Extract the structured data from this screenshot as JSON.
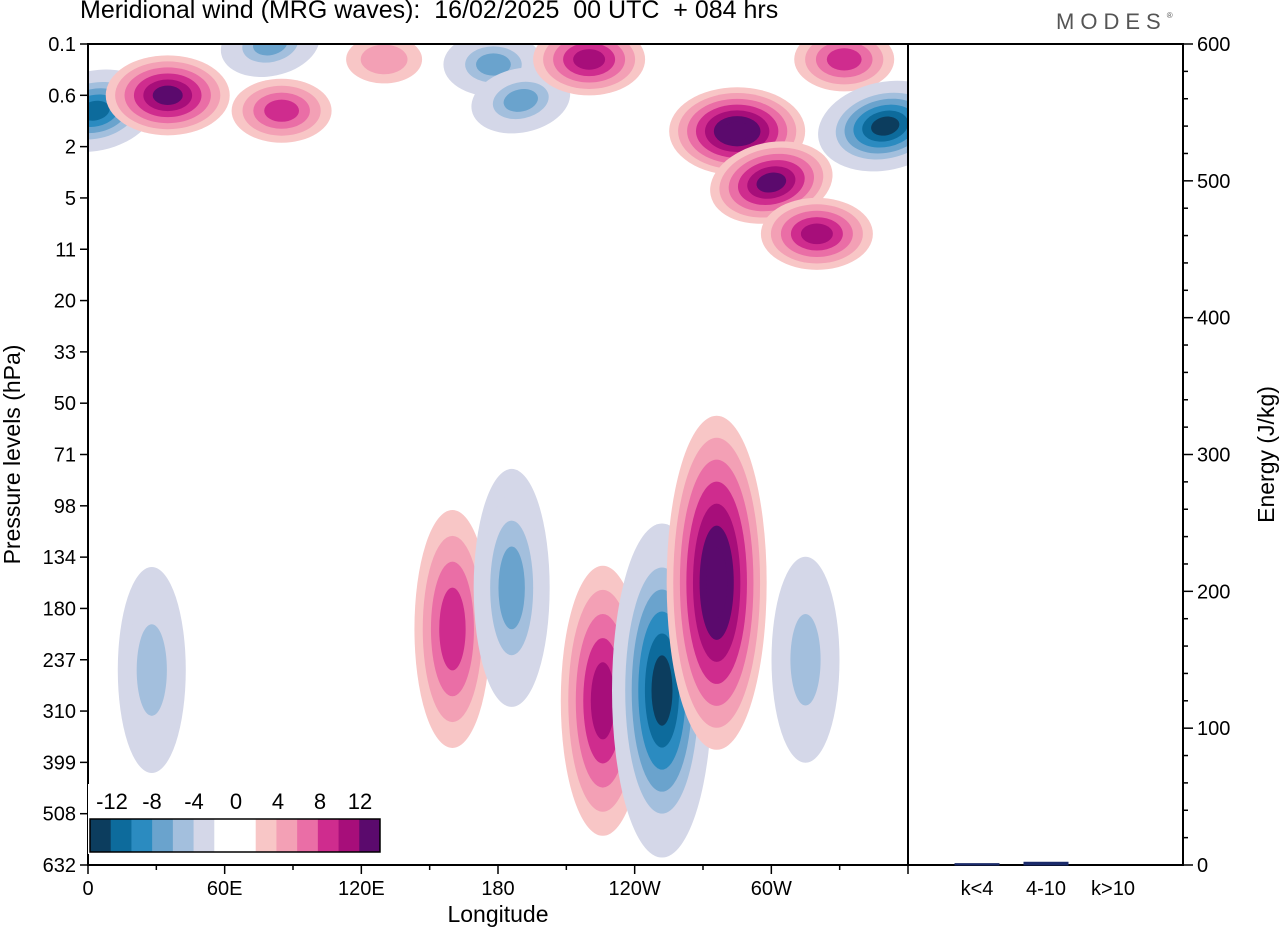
{
  "header": {
    "title": "Meridional wind (MRG waves):  16/02/2025  00 UTC  + 084 hrs",
    "brand": "MODES",
    "brand_mark": "®"
  },
  "colors": {
    "levels_negative": [
      "#0c3d5e",
      "#0d6b9c",
      "#2b8bc0",
      "#6aa3cd",
      "#a3bfdd",
      "#d4d7e8"
    ],
    "zero": "#ffffff",
    "levels_positive": [
      "#f8c6c6",
      "#f3a0b5",
      "#ea6ea6",
      "#cf2c8e",
      "#a70e7a",
      "#5b0a6d"
    ]
  },
  "chart_data": [
    {
      "type": "heatmap",
      "title": "Meridional wind (MRG waves):  16/02/2025  00 UTC  + 084 hrs",
      "xlabel": "Longitude",
      "ylabel": "Pressure levels (hPa)",
      "x_tick_labels": [
        "0",
        "60E",
        "120E",
        "180",
        "120W",
        "60W"
      ],
      "x_ticks_deg": [
        0,
        60,
        120,
        180,
        240,
        300
      ],
      "xlim": [
        0,
        360
      ],
      "y_tick_labels": [
        "0.1",
        "0.6",
        "2",
        "5",
        "11",
        "20",
        "33",
        "50",
        "71",
        "98",
        "134",
        "180",
        "237",
        "310",
        "399",
        "508",
        "632"
      ],
      "colorbar": {
        "tick_labels": [
          "-12",
          "-8",
          "-4",
          "0",
          "4",
          "8",
          "12"
        ],
        "levels": [
          -14,
          -12,
          -10,
          -8,
          -6,
          -4,
          -2,
          2,
          4,
          6,
          8,
          10,
          12,
          14
        ]
      },
      "features": [
        {
          "lon": 3,
          "lev": 1.3,
          "value": -13
        },
        {
          "lon": 35,
          "lev": 1.0,
          "value": 12
        },
        {
          "lon": 85,
          "lev": 1.3,
          "value": 9
        },
        {
          "lon": 80,
          "lev": 0.0,
          "value": -9
        },
        {
          "lon": 130,
          "lev": 0.3,
          "value": 5
        },
        {
          "lon": 178,
          "lev": 0.4,
          "value": -9
        },
        {
          "lon": 190,
          "lev": 1.1,
          "value": -9
        },
        {
          "lon": 220,
          "lev": 0.3,
          "value": 11
        },
        {
          "lon": 285,
          "lev": 1.7,
          "value": 14
        },
        {
          "lon": 300,
          "lev": 2.7,
          "value": 12
        },
        {
          "lon": 320,
          "lev": 3.7,
          "value": 11
        },
        {
          "lon": 332,
          "lev": 0.3,
          "value": 9
        },
        {
          "lon": 350,
          "lev": 1.6,
          "value": -14
        },
        {
          "lon": 160,
          "lev": 11.4,
          "value": 9
        },
        {
          "lon": 186,
          "lev": 10.6,
          "value": -8
        },
        {
          "lon": 226,
          "lev": 12.8,
          "value": 11
        },
        {
          "lon": 252,
          "lev": 12.6,
          "value": -15
        },
        {
          "lon": 276,
          "lev": 10.5,
          "value": 14
        },
        {
          "lon": 28,
          "lev": 12.2,
          "value": -7
        },
        {
          "lon": 315,
          "lev": 12.0,
          "value": -7
        }
      ]
    },
    {
      "type": "bar",
      "categories": [
        "k<4",
        "4-10",
        "k>10"
      ],
      "values": [
        1,
        2,
        0
      ],
      "ylabel": "Energy (J/kg)",
      "ylim": [
        0,
        600
      ],
      "y_tick_labels": [
        "0",
        "100",
        "200",
        "300",
        "400",
        "500",
        "600"
      ]
    }
  ]
}
